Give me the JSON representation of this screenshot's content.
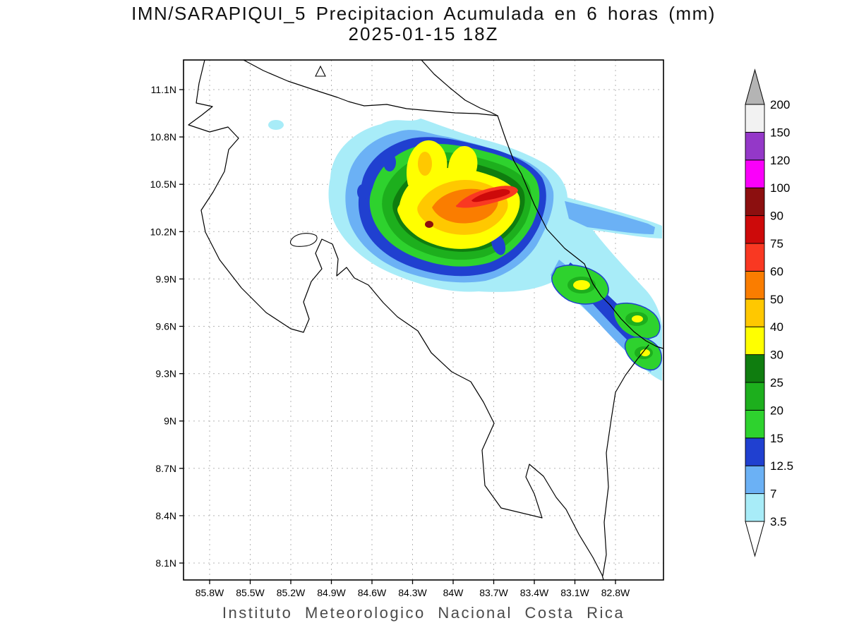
{
  "header": {
    "title": "IMN/SARAPIQUI_5 Precipitacion Acumulada en 6 horas (mm)",
    "subtitle": "2025-01-15 18Z"
  },
  "footer": {
    "credit": "Instituto Meteorologico Nacional Costa Rica"
  },
  "chart_data": {
    "type": "heatmap",
    "title": "IMN/SARAPIQUI_5 Precipitacion Acumulada en 6 horas (mm)",
    "valid_time": "2025-01-15 18Z",
    "units": "mm",
    "map_region": "Costa Rica",
    "lat_ticks": [
      "11.1N",
      "10.8N",
      "10.5N",
      "10.2N",
      "9.9N",
      "9.6N",
      "9.3N",
      "9N",
      "8.7N",
      "8.4N",
      "8.1N"
    ],
    "lon_ticks": [
      "85.8W",
      "85.5W",
      "85.2W",
      "84.9W",
      "84.6W",
      "84.3W",
      "84W",
      "83.7W",
      "83.4W",
      "83.1W",
      "82.8W"
    ],
    "grid": "dotted",
    "colorbar": {
      "levels": [
        "3.5",
        "7",
        "12.5",
        "15",
        "20",
        "25",
        "30",
        "40",
        "50",
        "60",
        "75",
        "90",
        "100",
        "120",
        "150",
        "200"
      ],
      "segment_colors": [
        "#a8ecf8",
        "#6bb1f5",
        "#2040d0",
        "#2ed22e",
        "#1daf1d",
        "#0f7d0f",
        "#ffff00",
        "#ffc800",
        "#fa7d00",
        "#f93822",
        "#cd0a0a",
        "#8c0f0f",
        "#fa00fa",
        "#9438c8",
        "#f2f2f2"
      ],
      "above_color": "#b4b4b4",
      "below_color": "#ffffff",
      "position": "right"
    },
    "features": [
      {
        "value_range_mm": "60-100",
        "description": "Elongated heavy-rain core oriented WNW-ESE near 10.3N-10.45N between 84.5W and 83.8W, small 90+ mm spot near 10.25N 84.3W"
      },
      {
        "value_range_mm": "30-60",
        "description": "Broad yellow/orange shield over northern Costa Rica roughly 10.0N-10.7N, 85.0W-83.5W"
      },
      {
        "value_range_mm": "15-50",
        "description": "Banded totals extending southeast along the Caribbean slope toward 9.3N 82.8W"
      },
      {
        "value_range_mm": "3.5-12.5",
        "description": "Light fringe totals around the main area and an isolated patch near 10.75N 85.3W"
      }
    ]
  }
}
